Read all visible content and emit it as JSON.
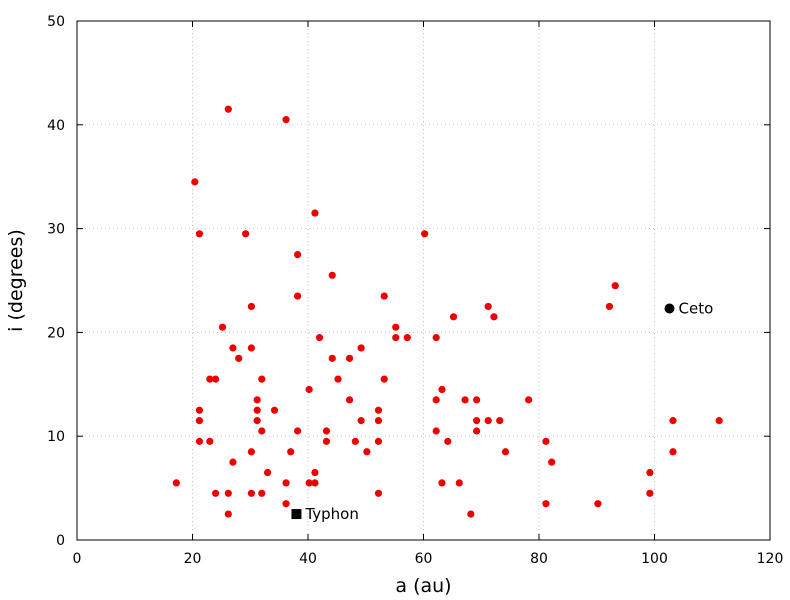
{
  "chart_data": {
    "type": "scatter",
    "title": "",
    "xlabel": "a (au)",
    "ylabel": "i (degrees)",
    "xlim": [
      0,
      120
    ],
    "ylim": [
      0,
      50
    ],
    "xticks": [
      0,
      20,
      40,
      60,
      80,
      100,
      120
    ],
    "yticks": [
      0,
      10,
      20,
      30,
      40,
      50
    ],
    "grid": true,
    "series": [
      {
        "color": "#ee0000",
        "marker": "circle",
        "points": [
          [
            17.2,
            5.5
          ],
          [
            20.4,
            34.5
          ],
          [
            21.2,
            29.5
          ],
          [
            21.2,
            12.5
          ],
          [
            21.2,
            11.5
          ],
          [
            21.2,
            9.5
          ],
          [
            23.0,
            15.5
          ],
          [
            23.0,
            9.5
          ],
          [
            24.0,
            15.5
          ],
          [
            24.0,
            4.5
          ],
          [
            25.2,
            20.5
          ],
          [
            26.2,
            41.5
          ],
          [
            26.2,
            4.5
          ],
          [
            26.2,
            2.5
          ],
          [
            27.0,
            18.5
          ],
          [
            27.0,
            7.5
          ],
          [
            28.0,
            17.5
          ],
          [
            29.2,
            29.5
          ],
          [
            30.2,
            22.5
          ],
          [
            30.2,
            18.5
          ],
          [
            30.2,
            8.5
          ],
          [
            30.2,
            4.5
          ],
          [
            31.2,
            13.5
          ],
          [
            31.2,
            12.5
          ],
          [
            31.2,
            11.5
          ],
          [
            32.0,
            15.5
          ],
          [
            32.0,
            10.5
          ],
          [
            32.0,
            4.5
          ],
          [
            33.0,
            6.5
          ],
          [
            34.2,
            12.5
          ],
          [
            36.2,
            40.5
          ],
          [
            36.2,
            5.5
          ],
          [
            36.2,
            3.5
          ],
          [
            37.0,
            8.5
          ],
          [
            38.2,
            27.5
          ],
          [
            38.2,
            23.5
          ],
          [
            38.2,
            10.5
          ],
          [
            40.2,
            14.5
          ],
          [
            40.2,
            5.5
          ],
          [
            41.2,
            31.5
          ],
          [
            41.2,
            6.5
          ],
          [
            41.2,
            5.5
          ],
          [
            42.0,
            19.5
          ],
          [
            43.2,
            10.5
          ],
          [
            43.2,
            9.5
          ],
          [
            44.2,
            25.5
          ],
          [
            44.2,
            17.5
          ],
          [
            45.2,
            15.5
          ],
          [
            47.2,
            17.5
          ],
          [
            47.2,
            13.5
          ],
          [
            48.2,
            9.5
          ],
          [
            49.2,
            18.5
          ],
          [
            49.2,
            11.5
          ],
          [
            50.2,
            8.5
          ],
          [
            52.2,
            12.5
          ],
          [
            52.2,
            11.5
          ],
          [
            52.2,
            9.5
          ],
          [
            52.2,
            4.5
          ],
          [
            53.2,
            23.5
          ],
          [
            53.2,
            15.5
          ],
          [
            55.2,
            20.5
          ],
          [
            55.2,
            19.5
          ],
          [
            57.2,
            19.5
          ],
          [
            60.2,
            29.5
          ],
          [
            62.2,
            19.5
          ],
          [
            62.2,
            13.5
          ],
          [
            62.2,
            10.5
          ],
          [
            63.2,
            14.5
          ],
          [
            63.2,
            5.5
          ],
          [
            64.2,
            9.5
          ],
          [
            65.2,
            21.5
          ],
          [
            66.2,
            5.5
          ],
          [
            67.2,
            13.5
          ],
          [
            68.2,
            2.5
          ],
          [
            69.2,
            13.5
          ],
          [
            69.2,
            11.5
          ],
          [
            69.2,
            10.5
          ],
          [
            71.2,
            22.5
          ],
          [
            71.2,
            11.5
          ],
          [
            72.2,
            21.5
          ],
          [
            73.2,
            11.5
          ],
          [
            74.2,
            8.5
          ],
          [
            78.2,
            13.5
          ],
          [
            81.2,
            9.5
          ],
          [
            81.2,
            3.5
          ],
          [
            82.2,
            7.5
          ],
          [
            90.2,
            3.5
          ],
          [
            92.2,
            22.5
          ],
          [
            93.2,
            24.5
          ],
          [
            99.2,
            6.5
          ],
          [
            99.2,
            4.5
          ],
          [
            103.2,
            11.5
          ],
          [
            103.2,
            8.5
          ],
          [
            111.2,
            11.5
          ]
        ]
      }
    ],
    "annotations": [
      {
        "label": "Ceto",
        "x": 102.6,
        "y": 22.3,
        "marker": "circle",
        "color": "#000000"
      },
      {
        "label": "Typhon",
        "x": 38.0,
        "y": 2.5,
        "marker": "square",
        "color": "#000000"
      }
    ]
  }
}
